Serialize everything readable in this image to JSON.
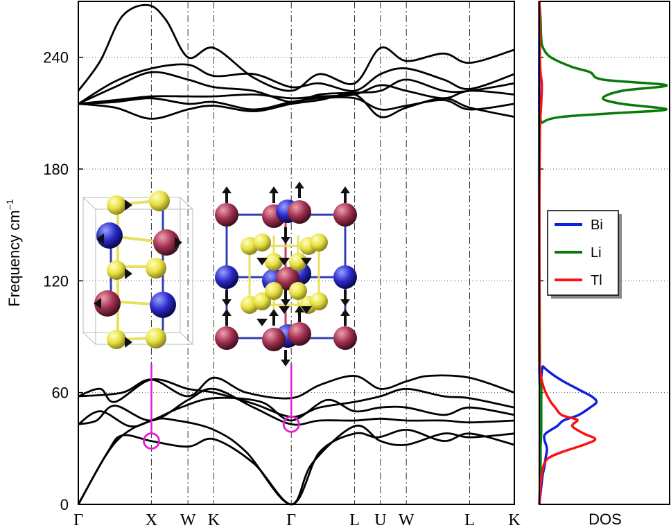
{
  "chart_data": [
    {
      "type": "line",
      "ylabel": "Frequency cm",
      "ylabel_sup": "−1",
      "ylim": [
        0,
        270
      ],
      "yticks": [
        0,
        60,
        120,
        180,
        240
      ],
      "kpath": {
        "labels": [
          "Γ",
          "X",
          "W",
          "K",
          "Γ",
          "L",
          "U",
          "W",
          "L",
          "K"
        ],
        "positions": [
          0,
          1.0,
          1.5,
          1.854,
          2.914,
          3.78,
          4.134,
          4.488,
          5.354,
          5.966
        ]
      },
      "series": [
        {
          "values": [
            [
              0,
              0
            ],
            [
              0.5,
              33
            ],
            [
              1.0,
              45
            ],
            [
              1.35,
              45
            ],
            [
              1.854,
              40
            ],
            [
              2.3,
              28
            ],
            [
              2.914,
              0
            ],
            [
              3.3,
              28
            ],
            [
              3.78,
              38
            ],
            [
              4.1,
              36
            ],
            [
              4.5,
              40
            ],
            [
              5.0,
              34
            ],
            [
              5.354,
              38
            ],
            [
              5.966,
              32
            ]
          ]
        },
        {
          "values": [
            [
              0,
              0
            ],
            [
              0.4,
              28
            ],
            [
              0.6,
              37
            ],
            [
              1.0,
              34
            ],
            [
              1.5,
              31
            ],
            [
              1.854,
              35
            ],
            [
              2.4,
              22
            ],
            [
              2.914,
              0
            ],
            [
              3.2,
              22
            ],
            [
              3.78,
              42
            ],
            [
              4.134,
              34
            ],
            [
              4.488,
              32
            ],
            [
              5.0,
              38
            ],
            [
              5.354,
              36
            ],
            [
              5.966,
              38
            ]
          ]
        },
        {
          "values": [
            [
              0,
              43
            ],
            [
              0.25,
              45
            ],
            [
              0.5,
              53
            ],
            [
              1.0,
              45
            ],
            [
              1.5,
              56
            ],
            [
              1.854,
              62
            ],
            [
              2.4,
              52
            ],
            [
              2.914,
              43
            ],
            [
              3.3,
              45
            ],
            [
              3.78,
              45
            ],
            [
              4.134,
              46
            ],
            [
              4.488,
              45
            ],
            [
              5.0,
              45
            ],
            [
              5.354,
              44
            ],
            [
              5.966,
              45
            ]
          ]
        },
        {
          "values": [
            [
              0,
              43
            ],
            [
              0.3,
              50
            ],
            [
              0.7,
              42
            ],
            [
              1.0,
              45
            ],
            [
              1.4,
              52
            ],
            [
              1.854,
              57
            ],
            [
              2.5,
              55
            ],
            [
              2.914,
              45
            ],
            [
              3.4,
              56
            ],
            [
              3.78,
              50
            ],
            [
              4.134,
              52
            ],
            [
              4.488,
              52
            ],
            [
              5.0,
              48
            ],
            [
              5.354,
              52
            ],
            [
              5.966,
              48
            ]
          ]
        },
        {
          "values": [
            [
              0,
              58
            ],
            [
              0.3,
              62
            ],
            [
              0.5,
              55
            ],
            [
              1.0,
              67
            ],
            [
              1.5,
              62
            ],
            [
              1.854,
              60
            ],
            [
              2.4,
              54
            ],
            [
              2.914,
              47
            ],
            [
              3.3,
              52
            ],
            [
              3.78,
              55
            ],
            [
              4.134,
              58
            ],
            [
              4.488,
              62
            ],
            [
              5.0,
              58
            ],
            [
              5.354,
              57
            ],
            [
              5.966,
              52
            ]
          ]
        },
        {
          "values": [
            [
              0,
              58
            ],
            [
              0.6,
              60
            ],
            [
              1.0,
              67
            ],
            [
              1.5,
              58
            ],
            [
              1.854,
              68
            ],
            [
              2.3,
              60
            ],
            [
              2.914,
              57
            ],
            [
              3.3,
              64
            ],
            [
              3.78,
              69
            ],
            [
              4.134,
              62
            ],
            [
              4.488,
              66
            ],
            [
              4.8,
              69
            ],
            [
              5.354,
              68
            ],
            [
              5.966,
              60
            ]
          ]
        },
        {
          "values": [
            [
              0,
              215
            ],
            [
              0.5,
              213
            ],
            [
              1.0,
              207
            ],
            [
              1.5,
              212
            ],
            [
              1.854,
              214
            ],
            [
              2.4,
              211
            ],
            [
              2.914,
              215
            ],
            [
              3.3,
              217
            ],
            [
              3.78,
              220
            ],
            [
              4.134,
              208
            ],
            [
              4.488,
              213
            ],
            [
              5.0,
              218
            ],
            [
              5.354,
              213
            ],
            [
              5.966,
              208
            ]
          ]
        },
        {
          "values": [
            [
              0,
              215
            ],
            [
              0.5,
              216
            ],
            [
              1.0,
              218
            ],
            [
              1.5,
              215
            ],
            [
              1.854,
              216
            ],
            [
              2.4,
              212
            ],
            [
              2.914,
              216
            ],
            [
              3.3,
              218
            ],
            [
              3.78,
              218
            ],
            [
              4.134,
              212
            ],
            [
              4.488,
              214
            ],
            [
              5.0,
              217
            ],
            [
              5.354,
              212
            ],
            [
              5.966,
              215
            ]
          ]
        },
        {
          "values": [
            [
              0,
              215
            ],
            [
              0.5,
              217
            ],
            [
              1.0,
              219
            ],
            [
              1.5,
              219
            ],
            [
              1.854,
              219
            ],
            [
              2.4,
              220
            ],
            [
              2.914,
              218
            ],
            [
              3.3,
              219
            ],
            [
              3.78,
              220
            ],
            [
              4.134,
              225
            ],
            [
              4.488,
              222
            ],
            [
              5.0,
              218
            ],
            [
              5.354,
              222
            ],
            [
              5.966,
              220
            ]
          ]
        },
        {
          "values": [
            [
              0,
              215
            ],
            [
              0.5,
              224
            ],
            [
              1.0,
              232
            ],
            [
              1.5,
              228
            ],
            [
              1.854,
              224
            ],
            [
              2.4,
              222
            ],
            [
              2.914,
              216
            ],
            [
              3.3,
              220
            ],
            [
              3.78,
              221
            ],
            [
              4.134,
              222
            ],
            [
              4.488,
              228
            ],
            [
              5.0,
              222
            ],
            [
              5.354,
              222
            ],
            [
              5.966,
              226
            ]
          ]
        },
        {
          "values": [
            [
              0,
              215
            ],
            [
              0.5,
              227
            ],
            [
              1.0,
              234
            ],
            [
              1.5,
              236
            ],
            [
              1.854,
              230
            ],
            [
              2.4,
              231
            ],
            [
              2.914,
              224
            ],
            [
              3.3,
              226
            ],
            [
              3.78,
              222
            ],
            [
              4.134,
              231
            ],
            [
              4.488,
              234
            ],
            [
              5.0,
              228
            ],
            [
              5.354,
              223
            ],
            [
              5.966,
              231
            ]
          ]
        },
        {
          "values": [
            [
              0,
              222
            ],
            [
              0.3,
              238
            ],
            [
              0.6,
              262
            ],
            [
              0.95,
              268
            ],
            [
              1.2,
              260
            ],
            [
              1.5,
              240
            ],
            [
              1.854,
              245
            ],
            [
              2.4,
              229
            ],
            [
              2.914,
              222
            ],
            [
              3.3,
              231
            ],
            [
              3.78,
              226
            ],
            [
              4.134,
              245
            ],
            [
              4.488,
              238
            ],
            [
              5.0,
              242
            ],
            [
              5.354,
              237
            ],
            [
              5.966,
              244
            ]
          ]
        }
      ],
      "markers": [
        {
          "label": "X",
          "x": 1.0,
          "y": 34
        },
        {
          "label": "Γ",
          "x": 2.914,
          "y": 43
        }
      ]
    },
    {
      "type": "line",
      "xlabel": "DOS",
      "ylim": [
        0,
        270
      ],
      "legend_position": "center-left",
      "series": [
        {
          "name": "Bi",
          "color": "#1020e0",
          "values": [
            [
              0,
              0
            ],
            [
              15,
              0.05
            ],
            [
              20,
              0.08
            ],
            [
              25,
              0.1
            ],
            [
              30,
              0.12
            ],
            [
              35,
              0.08
            ],
            [
              38,
              0.1
            ],
            [
              42,
              0.28
            ],
            [
              45,
              0.38
            ],
            [
              48,
              0.62
            ],
            [
              52,
              0.8
            ],
            [
              55,
              0.9
            ],
            [
              58,
              0.82
            ],
            [
              62,
              0.6
            ],
            [
              66,
              0.38
            ],
            [
              70,
              0.2
            ],
            [
              74,
              0.06
            ],
            [
              78,
              0.0
            ],
            [
              270,
              0
            ]
          ]
        },
        {
          "name": "Li",
          "color": "#0a7a0a",
          "values": [
            [
              0,
              0
            ],
            [
              20,
              0.02
            ],
            [
              30,
              0.02
            ],
            [
              40,
              0.03
            ],
            [
              55,
              0.03
            ],
            [
              65,
              0.03
            ],
            [
              75,
              0.01
            ],
            [
              200,
              0.0
            ],
            [
              205,
              0.05
            ],
            [
              208,
              0.35
            ],
            [
              210,
              1.2
            ],
            [
              212,
              2.0
            ],
            [
              215,
              1.3
            ],
            [
              218,
              1.0
            ],
            [
              222,
              1.3
            ],
            [
              225,
              2.0
            ],
            [
              228,
              1.0
            ],
            [
              232,
              0.8
            ],
            [
              235,
              0.5
            ],
            [
              240,
              0.18
            ],
            [
              245,
              0.06
            ],
            [
              250,
              0.03
            ],
            [
              260,
              0.02
            ],
            [
              270,
              0.0
            ]
          ]
        },
        {
          "name": "Tl",
          "color": "#ff1010",
          "values": [
            [
              0,
              0
            ],
            [
              10,
              0.02
            ],
            [
              18,
              0.05
            ],
            [
              22,
              0.08
            ],
            [
              25,
              0.15
            ],
            [
              28,
              0.35
            ],
            [
              32,
              0.7
            ],
            [
              35,
              0.88
            ],
            [
              38,
              0.7
            ],
            [
              42,
              0.52
            ],
            [
              45,
              0.6
            ],
            [
              46,
              0.55
            ],
            [
              48,
              0.35
            ],
            [
              52,
              0.25
            ],
            [
              55,
              0.18
            ],
            [
              60,
              0.1
            ],
            [
              65,
              0.05
            ],
            [
              70,
              0.02
            ],
            [
              80,
              0.0
            ],
            [
              120,
              0.0
            ],
            [
              160,
              0.0
            ],
            [
              200,
              0.01
            ],
            [
              215,
              0.03
            ],
            [
              225,
              0.04
            ],
            [
              232,
              0.02
            ],
            [
              240,
              0.01
            ],
            [
              270,
              0.0
            ]
          ]
        }
      ]
    }
  ]
}
